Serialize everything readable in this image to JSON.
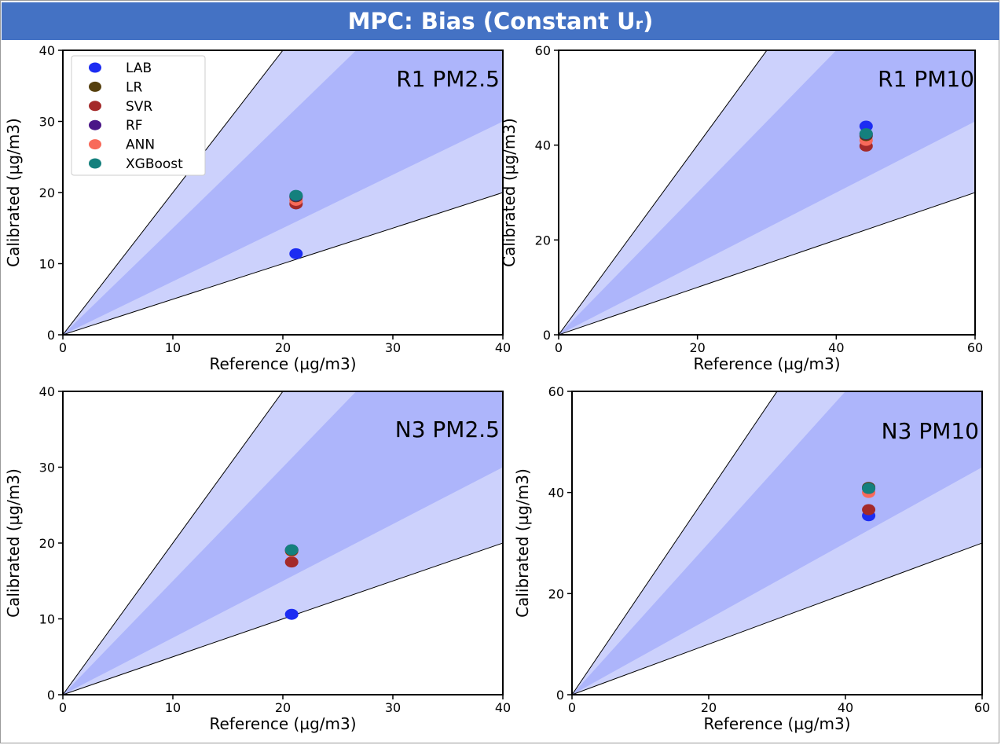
{
  "page": {
    "title_main": "MPC: Bias (Constant U",
    "title_sub": "r",
    "title_end": ")"
  },
  "colors": {
    "banner": "#4472c4",
    "band_inner": "#adb5fb",
    "band_outer": "#ccd1fc",
    "LAB": "#1c2cf2",
    "LR": "#56400e",
    "SVR": "#a42a2a",
    "RF": "#4a1687",
    "ANN": "#f86a5a",
    "XGBoost": "#14807d"
  },
  "legend": [
    "LAB",
    "LR",
    "SVR",
    "RF",
    "ANN",
    "XGBoost"
  ],
  "chart_data": [
    {
      "type": "scatter",
      "label": "R1 PM2.5",
      "xlabel": "Reference (µg/m3)",
      "ylabel": "Calibrated (µg/m3)",
      "xlim": [
        0,
        40
      ],
      "ylim": [
        0,
        40
      ],
      "xticks": [
        0,
        10,
        20,
        30,
        40
      ],
      "yticks": [
        0,
        10,
        20,
        30,
        40
      ],
      "legend": true,
      "points": [
        {
          "series": "LAB",
          "x": 21.2,
          "y": 11.4
        },
        {
          "series": "SVR",
          "x": 21.2,
          "y": 18.4
        },
        {
          "series": "ANN",
          "x": 21.2,
          "y": 18.9
        },
        {
          "series": "LR",
          "x": 21.2,
          "y": 19.4
        },
        {
          "series": "RF",
          "x": 21.2,
          "y": 19.5
        },
        {
          "series": "XGBoost",
          "x": 21.2,
          "y": 19.6
        }
      ]
    },
    {
      "type": "scatter",
      "label": "R1 PM10",
      "xlabel": "Reference (µg/m3)",
      "ylabel": "Calibrated (µg/m3)",
      "xlim": [
        0,
        60
      ],
      "ylim": [
        0,
        60
      ],
      "xticks": [
        0,
        20,
        40,
        60
      ],
      "yticks": [
        0,
        20,
        40,
        60
      ],
      "legend": false,
      "points": [
        {
          "series": "LAB",
          "x": 44.3,
          "y": 44.0
        },
        {
          "series": "SVR",
          "x": 44.3,
          "y": 39.8
        },
        {
          "series": "ANN",
          "x": 44.3,
          "y": 41.0
        },
        {
          "series": "LR",
          "x": 44.3,
          "y": 42.0
        },
        {
          "series": "RF",
          "x": 44.3,
          "y": 42.3
        },
        {
          "series": "XGBoost",
          "x": 44.3,
          "y": 42.4
        }
      ]
    },
    {
      "type": "scatter",
      "label": "N3 PM2.5",
      "xlabel": "Reference (µg/m3)",
      "ylabel": "Calibrated (µg/m3)",
      "xlim": [
        0,
        40
      ],
      "ylim": [
        0,
        40
      ],
      "xticks": [
        0,
        10,
        20,
        30,
        40
      ],
      "yticks": [
        0,
        10,
        20,
        30,
        40
      ],
      "legend": false,
      "points": [
        {
          "series": "LAB",
          "x": 20.8,
          "y": 10.6
        },
        {
          "series": "SVR",
          "x": 20.8,
          "y": 17.5
        },
        {
          "series": "ANN",
          "x": 20.8,
          "y": 18.9
        },
        {
          "series": "LR",
          "x": 20.8,
          "y": 19.0
        },
        {
          "series": "RF",
          "x": 20.8,
          "y": 19.1
        },
        {
          "series": "XGBoost",
          "x": 20.8,
          "y": 19.1
        }
      ]
    },
    {
      "type": "scatter",
      "label": "N3 PM10",
      "xlabel": "Reference (µg/m3)",
      "ylabel": "Calibrated (µg/m3)",
      "xlim": [
        0,
        60
      ],
      "ylim": [
        0,
        60
      ],
      "xticks": [
        0,
        20,
        40,
        60
      ],
      "yticks": [
        0,
        20,
        40,
        60
      ],
      "legend": false,
      "points": [
        {
          "series": "LAB",
          "x": 43.4,
          "y": 35.4
        },
        {
          "series": "SVR",
          "x": 43.4,
          "y": 36.6
        },
        {
          "series": "ANN",
          "x": 43.4,
          "y": 40.0
        },
        {
          "series": "LR",
          "x": 43.4,
          "y": 41.0
        },
        {
          "series": "RF",
          "x": 43.4,
          "y": 40.8
        },
        {
          "series": "XGBoost",
          "x": 43.4,
          "y": 40.8
        }
      ]
    }
  ]
}
